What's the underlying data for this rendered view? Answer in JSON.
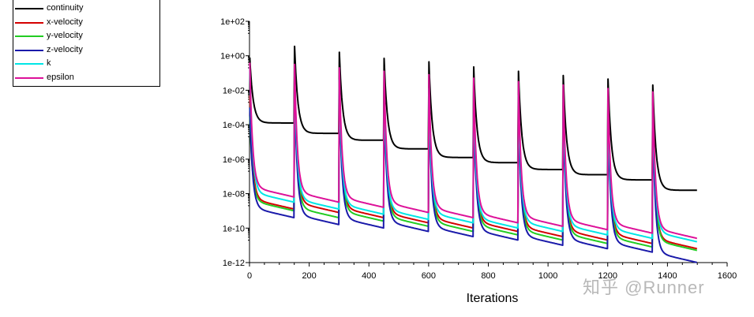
{
  "chart_data": {
    "type": "line",
    "title": "",
    "xlabel": "Iterations",
    "ylabel": "",
    "xlim": [
      0,
      1600
    ],
    "ylim_exp": [
      -12,
      2
    ],
    "y_scale": "log",
    "x_ticks": [
      "0",
      "200",
      "400",
      "600",
      "800",
      "1000",
      "1200",
      "1400",
      "1600"
    ],
    "y_ticks": [
      "1e+02",
      "1e+00",
      "1e-02",
      "1e-04",
      "1e-06",
      "1e-08",
      "1e-10",
      "1e-12"
    ],
    "cycle_period": 150,
    "cycles": 10,
    "series": [
      {
        "name": "continuity",
        "color": "#000000",
        "log_start": [
          -0.1,
          0.55,
          0.2,
          -0.15,
          -0.35,
          -0.65,
          -0.9,
          -1.15,
          -1.35,
          -1.7
        ],
        "log_end": [
          -3.9,
          -4.5,
          -4.9,
          -5.4,
          -5.9,
          -6.2,
          -6.6,
          -6.9,
          -7.2,
          -7.8
        ]
      },
      {
        "name": "x-velocity",
        "color": "#d40000",
        "log_start": [
          -2.3,
          -1.2,
          -1.5,
          -1.8,
          -2.0,
          -2.3,
          -2.5,
          -2.7,
          -2.9,
          -3.1
        ],
        "log_end": [
          -8.3,
          -8.5,
          -8.8,
          -9.1,
          -9.4,
          -9.6,
          -9.9,
          -10.1,
          -10.3,
          -10.6
        ]
      },
      {
        "name": "y-velocity",
        "color": "#22cc22",
        "log_start": [
          -3.5,
          -1.6,
          -1.9,
          -2.1,
          -2.3,
          -2.6,
          -2.8,
          -3.0,
          -3.2,
          -3.4
        ],
        "log_end": [
          -8.4,
          -8.8,
          -9.0,
          -9.3,
          -9.6,
          -9.8,
          -10.1,
          -10.3,
          -10.5,
          -10.7
        ]
      },
      {
        "name": "z-velocity",
        "color": "#1a1aaa",
        "log_start": [
          -3.0,
          -1.9,
          -2.2,
          -2.5,
          -2.7,
          -3.0,
          -3.2,
          -3.4,
          -3.6,
          -3.9
        ],
        "log_end": [
          -8.8,
          -9.2,
          -9.4,
          -9.6,
          -9.9,
          -10.1,
          -10.4,
          -10.6,
          -10.8,
          -11.4
        ]
      },
      {
        "name": "k",
        "color": "#00e6e6",
        "log_start": [
          -0.6,
          -1.1,
          -1.4,
          -1.6,
          -1.9,
          -2.1,
          -2.3,
          -2.5,
          -2.7,
          -2.9
        ],
        "log_end": [
          -7.9,
          -8.3,
          -8.6,
          -8.9,
          -9.1,
          -9.4,
          -9.6,
          -9.8,
          -10.0,
          -10.2
        ]
      },
      {
        "name": "epsilon",
        "color": "#dd1199",
        "log_start": [
          -0.4,
          -0.5,
          -0.7,
          -0.9,
          -1.1,
          -1.3,
          -1.5,
          -1.7,
          -1.9,
          -2.1
        ],
        "log_end": [
          -7.6,
          -7.9,
          -8.2,
          -8.5,
          -8.8,
          -9.1,
          -9.3,
          -9.5,
          -9.7,
          -10.0
        ]
      }
    ]
  },
  "watermark": "知乎 @Runner"
}
